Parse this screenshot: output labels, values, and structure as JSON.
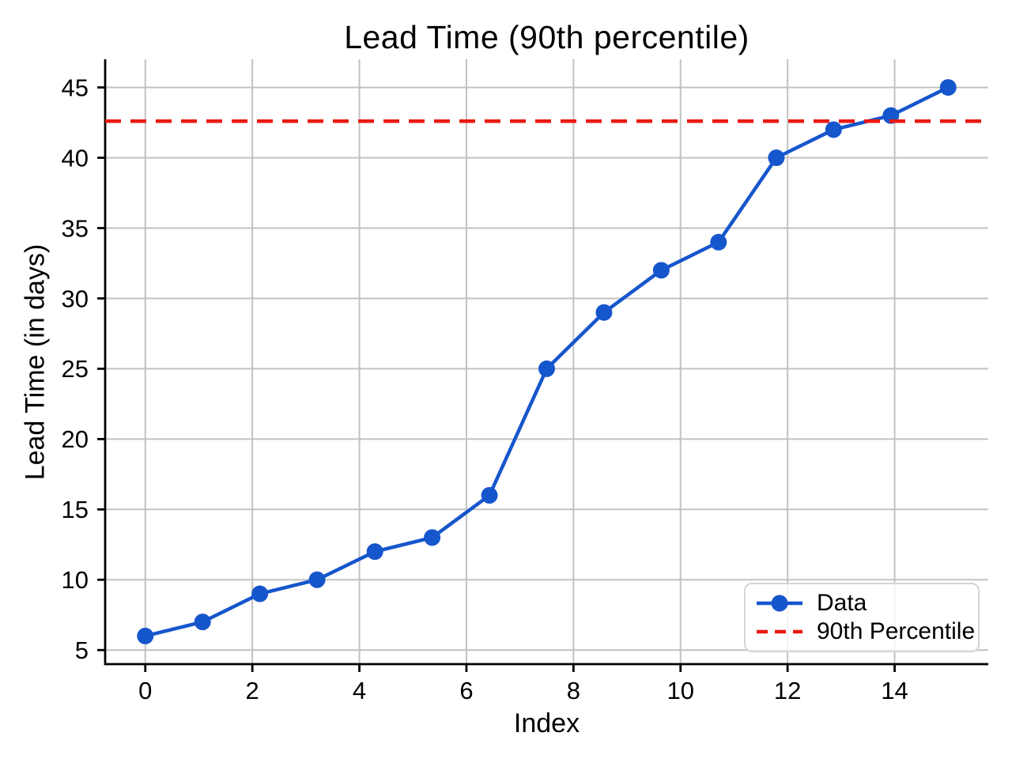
{
  "chart_data": {
    "type": "line",
    "title": "Lead Time (90th percentile)",
    "xlabel": "Index",
    "ylabel": "Lead Time (in days)",
    "x": [
      0,
      1.07,
      2.14,
      3.21,
      4.29,
      5.36,
      6.43,
      7.5,
      8.57,
      9.64,
      10.71,
      11.79,
      12.86,
      13.93,
      15
    ],
    "series": [
      {
        "name": "Data",
        "values": [
          6,
          7,
          9,
          10,
          12,
          13,
          16,
          25,
          29,
          32,
          34,
          40,
          42,
          43,
          45
        ],
        "color": "#1656cc",
        "marker": "circle",
        "line_style": "solid"
      }
    ],
    "reference_lines": [
      {
        "name": "90th Percentile",
        "value": 42.6,
        "color": "#ea1910",
        "line_style": "dashed"
      }
    ],
    "xticks": [
      0,
      2,
      4,
      6,
      8,
      10,
      12,
      14
    ],
    "yticks": [
      5,
      10,
      15,
      20,
      25,
      30,
      35,
      40,
      45
    ],
    "xlim": [
      -0.75,
      15.75
    ],
    "ylim": [
      4,
      47
    ],
    "grid": true,
    "legend": {
      "position": "lower right",
      "entries": [
        "Data",
        "90th Percentile"
      ]
    }
  },
  "style": {
    "grid_color": "#c2c2c2",
    "spine_color": "#000000",
    "tick_label_color": "#000000",
    "legend_border_color": "#d4d4d4",
    "background_color": "#ffffff"
  }
}
